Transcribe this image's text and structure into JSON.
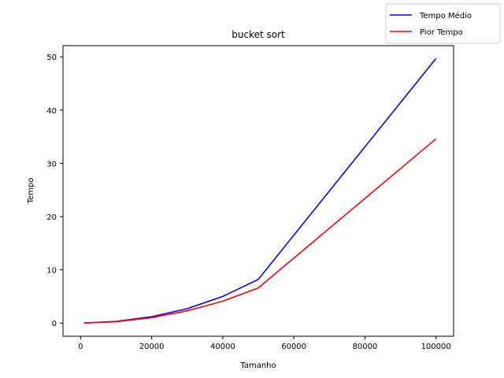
{
  "chart_data": {
    "type": "line",
    "title": "bucket sort",
    "xlabel": "Tamanho",
    "ylabel": "Tempo",
    "xlim": [
      -4950,
      104950
    ],
    "ylim": [
      -2.48,
      52.1
    ],
    "x_ticks": [
      0,
      20000,
      40000,
      60000,
      80000,
      100000
    ],
    "y_ticks": [
      0,
      10,
      20,
      30,
      40,
      50
    ],
    "x": [
      1000,
      10000,
      20000,
      30000,
      40000,
      50000,
      100000
    ],
    "series": [
      {
        "name": "Tempo Médio",
        "color": "#0000ff",
        "values": [
          0.0,
          0.3,
          1.2,
          2.7,
          5.0,
          8.2,
          49.7
        ]
      },
      {
        "name": "Pior Tempo",
        "color": "#ff0000",
        "values": [
          0.0,
          0.25,
          1.0,
          2.3,
          4.1,
          6.6,
          34.6
        ]
      }
    ],
    "legend": "top-right",
    "grid": false
  }
}
